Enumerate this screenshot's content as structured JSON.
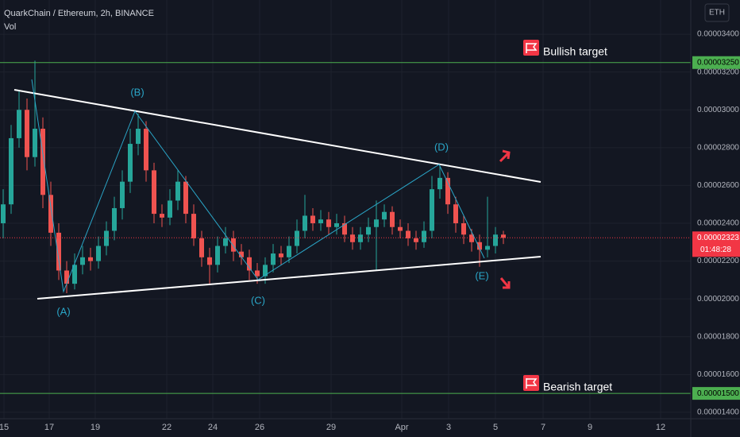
{
  "chart_data": {
    "type": "candlestick",
    "title": "QuarkChain / Ethereum, 2h, BINANCE",
    "indicator": "Vol",
    "currency": "ETH",
    "open": [
      2.4e-05,
      2.5e-05,
      2.85e-05,
      3e-05,
      2.75e-05,
      2.9e-05,
      2.55e-05,
      2.35e-05,
      2.15e-05,
      2.08e-05,
      2.18e-05,
      2.22e-05,
      2.2e-05,
      2.28e-05,
      2.36e-05,
      2.48e-05,
      2.62e-05,
      2.82e-05,
      2.9e-05,
      2.68e-05,
      2.45e-05,
      2.43e-05,
      2.52e-05,
      2.62e-05,
      2.45e-05,
      2.32e-05,
      2.22e-05,
      2.18e-05,
      2.28e-05,
      2.32e-05,
      2.25e-05,
      2.22e-05,
      2.15e-05,
      2.12e-05,
      2.18e-05,
      2.24e-05,
      2.22e-05,
      2.28e-05,
      2.36e-05,
      2.44e-05,
      2.4e-05,
      2.42e-05,
      2.38e-05,
      2.4e-05,
      2.34e-05,
      2.3e-05,
      2.34e-05,
      2.38e-05,
      2.42e-05,
      2.46e-05,
      2.38e-05,
      2.36e-05,
      2.32e-05,
      2.3e-05,
      2.36e-05,
      2.58e-05,
      2.64e-05,
      2.5e-05,
      2.4e-05,
      2.34e-05,
      2.3e-05,
      2.26e-05,
      2.28e-05,
      2.34e-05
    ],
    "high": [
      2.58e-05,
      2.92e-05,
      3.1e-05,
      3.06e-05,
      3.26e-05,
      2.96e-05,
      2.62e-05,
      2.4e-05,
      2.2e-05,
      2.24e-05,
      2.28e-05,
      2.27e-05,
      2.33e-05,
      2.41e-05,
      2.54e-05,
      2.68e-05,
      2.9e-05,
      2.98e-05,
      2.94e-05,
      2.72e-05,
      2.5e-05,
      2.58e-05,
      2.68e-05,
      2.65e-05,
      2.5e-05,
      2.36e-05,
      2.27e-05,
      2.33e-05,
      2.38e-05,
      2.36e-05,
      2.29e-05,
      2.26e-05,
      2.19e-05,
      2.22e-05,
      2.29e-05,
      2.28e-05,
      2.33e-05,
      2.42e-05,
      2.55e-05,
      2.48e-05,
      2.47e-05,
      2.46e-05,
      2.45e-05,
      2.44e-05,
      2.38e-05,
      2.38e-05,
      2.43e-05,
      2.52e-05,
      2.5e-05,
      2.49e-05,
      2.42e-05,
      2.4e-05,
      2.36e-05,
      2.41e-05,
      2.65e-05,
      2.7e-05,
      2.67e-05,
      2.54e-05,
      2.44e-05,
      2.37e-05,
      2.34e-05,
      2.54e-05,
      2.38e-05,
      2.36e-05
    ],
    "low": [
      2.32e-05,
      2.45e-05,
      2.8e-05,
      2.68e-05,
      2.7e-05,
      2.48e-05,
      2.28e-05,
      2.1e-05,
      2.03e-05,
      2.05e-05,
      2.13e-05,
      2.15e-05,
      2.16e-05,
      2.23e-05,
      2.31e-05,
      2.42e-05,
      2.56e-05,
      2.76e-05,
      2.62e-05,
      2.4e-05,
      2.38e-05,
      2.39e-05,
      2.47e-05,
      2.4e-05,
      2.28e-05,
      2.17e-05,
      2.08e-05,
      2.14e-05,
      2.24e-05,
      2.2e-05,
      2.18e-05,
      2.1e-05,
      2.08e-05,
      2.08e-05,
      2.14e-05,
      2.18e-05,
      2.19e-05,
      2.24e-05,
      2.32e-05,
      2.36e-05,
      2.36e-05,
      2.34e-05,
      2.34e-05,
      2.3e-05,
      2.26e-05,
      2.26e-05,
      2.3e-05,
      2.15e-05,
      2.38e-05,
      2.34e-05,
      2.32e-05,
      2.28e-05,
      2.26e-05,
      2.27e-05,
      2.32e-05,
      2.53e-05,
      2.45e-05,
      2.35e-05,
      2.29e-05,
      2.25e-05,
      2.17e-05,
      2.22e-05,
      2.24e-05,
      2.29e-05
    ],
    "close": [
      2.5e-05,
      2.85e-05,
      3e-05,
      2.75e-05,
      2.9e-05,
      2.55e-05,
      2.35e-05,
      2.15e-05,
      2.08e-05,
      2.18e-05,
      2.22e-05,
      2.2e-05,
      2.28e-05,
      2.36e-05,
      2.48e-05,
      2.62e-05,
      2.82e-05,
      2.9e-05,
      2.68e-05,
      2.45e-05,
      2.43e-05,
      2.52e-05,
      2.62e-05,
      2.45e-05,
      2.32e-05,
      2.22e-05,
      2.18e-05,
      2.28e-05,
      2.32e-05,
      2.25e-05,
      2.22e-05,
      2.15e-05,
      2.12e-05,
      2.18e-05,
      2.24e-05,
      2.22e-05,
      2.28e-05,
      2.36e-05,
      2.44e-05,
      2.4e-05,
      2.42e-05,
      2.38e-05,
      2.4e-05,
      2.34e-05,
      2.3e-05,
      2.34e-05,
      2.38e-05,
      2.42e-05,
      2.46e-05,
      2.38e-05,
      2.36e-05,
      2.32e-05,
      2.3e-05,
      2.36e-05,
      2.58e-05,
      2.64e-05,
      2.5e-05,
      2.4e-05,
      2.34e-05,
      2.3e-05,
      2.26e-05,
      2.28e-05,
      2.34e-05,
      2.323e-05
    ],
    "up_color": "#26a69a",
    "down_color": "#ef5350",
    "ylim": [
      1.366e-05,
      3.581e-05
    ],
    "yticks": [
      {
        "value": 3.4e-05,
        "label": "0.00003400"
      },
      {
        "value": 3.2e-05,
        "label": "0.00003200"
      },
      {
        "value": 3e-05,
        "label": "0.00003000"
      },
      {
        "value": 2.8e-05,
        "label": "0.00002800"
      },
      {
        "value": 2.6e-05,
        "label": "0.00002600"
      },
      {
        "value": 2.4e-05,
        "label": "0.00002400"
      },
      {
        "value": 2.2e-05,
        "label": "0.00002200"
      },
      {
        "value": 2e-05,
        "label": "0.00002000"
      },
      {
        "value": 1.8e-05,
        "label": "0.00001800"
      },
      {
        "value": 1.6e-05,
        "label": "0.00001600"
      },
      {
        "value": 1.4e-05,
        "label": "0.00001400"
      }
    ],
    "x_labels": [
      "15",
      "17",
      "19",
      "22",
      "24",
      "26",
      "29",
      "Apr",
      "3",
      "5",
      "7",
      "9",
      "12"
    ],
    "grid": true,
    "levels": [
      {
        "name": "Bullish target",
        "value": 3.25e-05,
        "label": "0.00003250",
        "color": "#4caf50"
      },
      {
        "name": "Bearish target",
        "value": 1.5e-05,
        "label": "0.00001500",
        "color": "#4caf50"
      }
    ],
    "last_price": {
      "value": 2.323e-05,
      "label": "0.00002323",
      "countdown": "01:48:28",
      "color": "#f23645"
    },
    "waves": [
      "(A)",
      "(B)",
      "(C)",
      "(D)",
      "(E)"
    ]
  }
}
